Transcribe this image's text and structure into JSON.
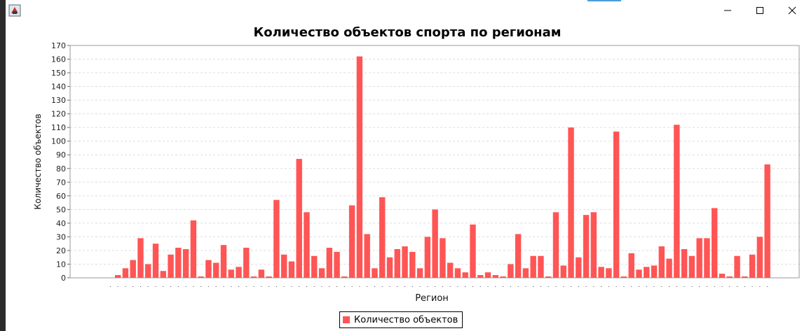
{
  "window": {
    "icon": "java-app-icon",
    "controls": [
      "minimize-icon",
      "maximize-icon",
      "close-icon"
    ]
  },
  "chart_data": {
    "type": "bar",
    "title": "Количество объектов спорта по регионам",
    "xlabel": "Регион",
    "ylabel": "Количество объектов",
    "ylim": [
      0,
      170
    ],
    "yticks": [
      0,
      10,
      20,
      30,
      40,
      50,
      60,
      70,
      80,
      90,
      100,
      110,
      120,
      130,
      140,
      150,
      160,
      170
    ],
    "grid": true,
    "legend_position": "bottom",
    "colors": {
      "bar": "#ff5555",
      "grid": "#dddddd",
      "plot_border": "#999999"
    },
    "series": [
      {
        "name": "Количество объектов",
        "values": [
          0,
          2,
          7,
          13,
          29,
          10,
          25,
          5,
          17,
          22,
          21,
          42,
          1,
          13,
          11,
          24,
          6,
          8,
          22,
          1,
          6,
          1,
          57,
          17,
          12,
          87,
          48,
          16,
          7,
          22,
          19,
          1,
          53,
          162,
          32,
          7,
          59,
          15,
          21,
          23,
          19,
          7,
          30,
          50,
          29,
          11,
          7,
          4,
          39,
          2,
          4,
          2,
          1,
          10,
          32,
          7,
          16,
          16,
          1,
          48,
          9,
          110,
          15,
          46,
          48,
          8,
          7,
          107,
          1,
          18,
          6,
          8,
          9,
          23,
          14,
          112,
          21,
          16,
          29,
          29,
          51,
          3,
          1,
          16,
          1,
          17,
          30,
          83
        ]
      }
    ]
  }
}
